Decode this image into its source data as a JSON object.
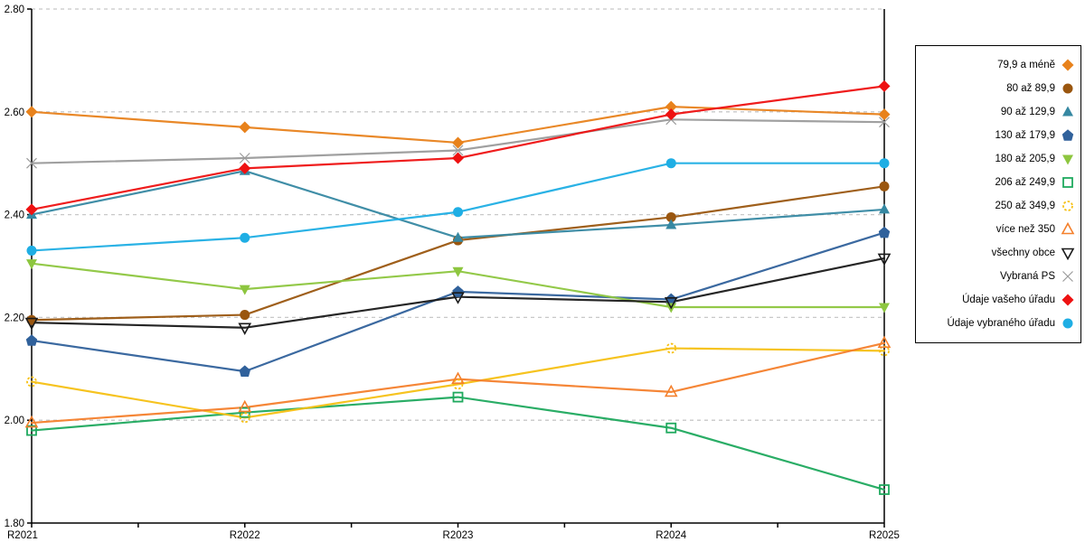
{
  "chart_data": {
    "type": "line",
    "categories": [
      "R2021",
      "R2022",
      "R2023",
      "R2024",
      "R2025"
    ],
    "ylim": [
      1.8,
      2.8
    ],
    "yticks": [
      1.8,
      2.0,
      2.2,
      2.4,
      2.6,
      2.8
    ],
    "ytick_labels": [
      "1.80",
      "2.00",
      "2.20",
      "2.40",
      "2.60",
      "2.80"
    ],
    "grid": "dashed-horizontal",
    "grid_color": "#c8c8c8",
    "axis_color": "#000000",
    "legend_position": "right-outside",
    "minor_xticks_at_half_steps": true,
    "series": [
      {
        "name": "79,9 a méně",
        "color": "#E8821C",
        "marker": "diamond",
        "filled": true,
        "values": [
          2.6,
          2.57,
          2.54,
          2.61,
          2.595
        ]
      },
      {
        "name": "80 až 89,9",
        "color": "#9A560F",
        "marker": "circle",
        "filled": true,
        "values": [
          2.195,
          2.205,
          2.35,
          2.395,
          2.455
        ]
      },
      {
        "name": "90 až 129,9",
        "color": "#3688A2",
        "marker": "triangle-up",
        "filled": true,
        "values": [
          2.4,
          2.485,
          2.355,
          2.38,
          2.41
        ]
      },
      {
        "name": "130 až 179,9",
        "color": "#30619B",
        "marker": "pentagon",
        "filled": true,
        "values": [
          2.155,
          2.095,
          2.25,
          2.235,
          2.365
        ]
      },
      {
        "name": "180 až 205,9",
        "color": "#8DC63F",
        "marker": "triangle-down",
        "filled": true,
        "values": [
          2.305,
          2.255,
          2.29,
          2.22,
          2.22
        ]
      },
      {
        "name": "206 až 249,9",
        "color": "#1FA95E",
        "marker": "square",
        "filled": false,
        "values": [
          1.98,
          2.015,
          2.045,
          1.985,
          1.865
        ]
      },
      {
        "name": "250 až 349,9",
        "color": "#F6C013",
        "marker": "circle-dashed",
        "filled": false,
        "values": [
          2.075,
          2.005,
          2.07,
          2.14,
          2.135
        ]
      },
      {
        "name": "více než 350",
        "color": "#F4802C",
        "marker": "triangle-up",
        "filled": false,
        "values": [
          1.995,
          2.025,
          2.08,
          2.055,
          2.15
        ]
      },
      {
        "name": "všechny obce",
        "color": "#1A1A1A",
        "marker": "triangle-down",
        "filled": false,
        "values": [
          2.19,
          2.18,
          2.24,
          2.23,
          2.315
        ]
      },
      {
        "name": "Vybraná PS",
        "color": "#9B9B9B",
        "marker": "x",
        "filled": false,
        "values": [
          2.5,
          2.51,
          2.525,
          2.585,
          2.58
        ]
      },
      {
        "name": "Údaje vašeho úřadu",
        "color": "#EE1111",
        "marker": "diamond",
        "filled": true,
        "values": [
          2.41,
          2.49,
          2.51,
          2.595,
          2.65
        ]
      },
      {
        "name": "Údaje vybraného úřadu",
        "color": "#1FAEE4",
        "marker": "circle",
        "filled": true,
        "values": [
          2.33,
          2.355,
          2.405,
          2.5,
          2.5
        ]
      }
    ]
  }
}
